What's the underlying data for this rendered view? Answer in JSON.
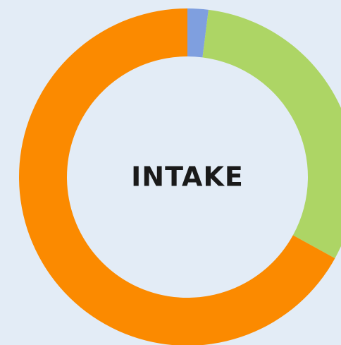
{
  "chart_data": {
    "type": "donut",
    "title": "INTAKE",
    "values": [
      2,
      31,
      67
    ],
    "colors": [
      "#7f9fdf",
      "#add565",
      "#fb8a00"
    ]
  }
}
